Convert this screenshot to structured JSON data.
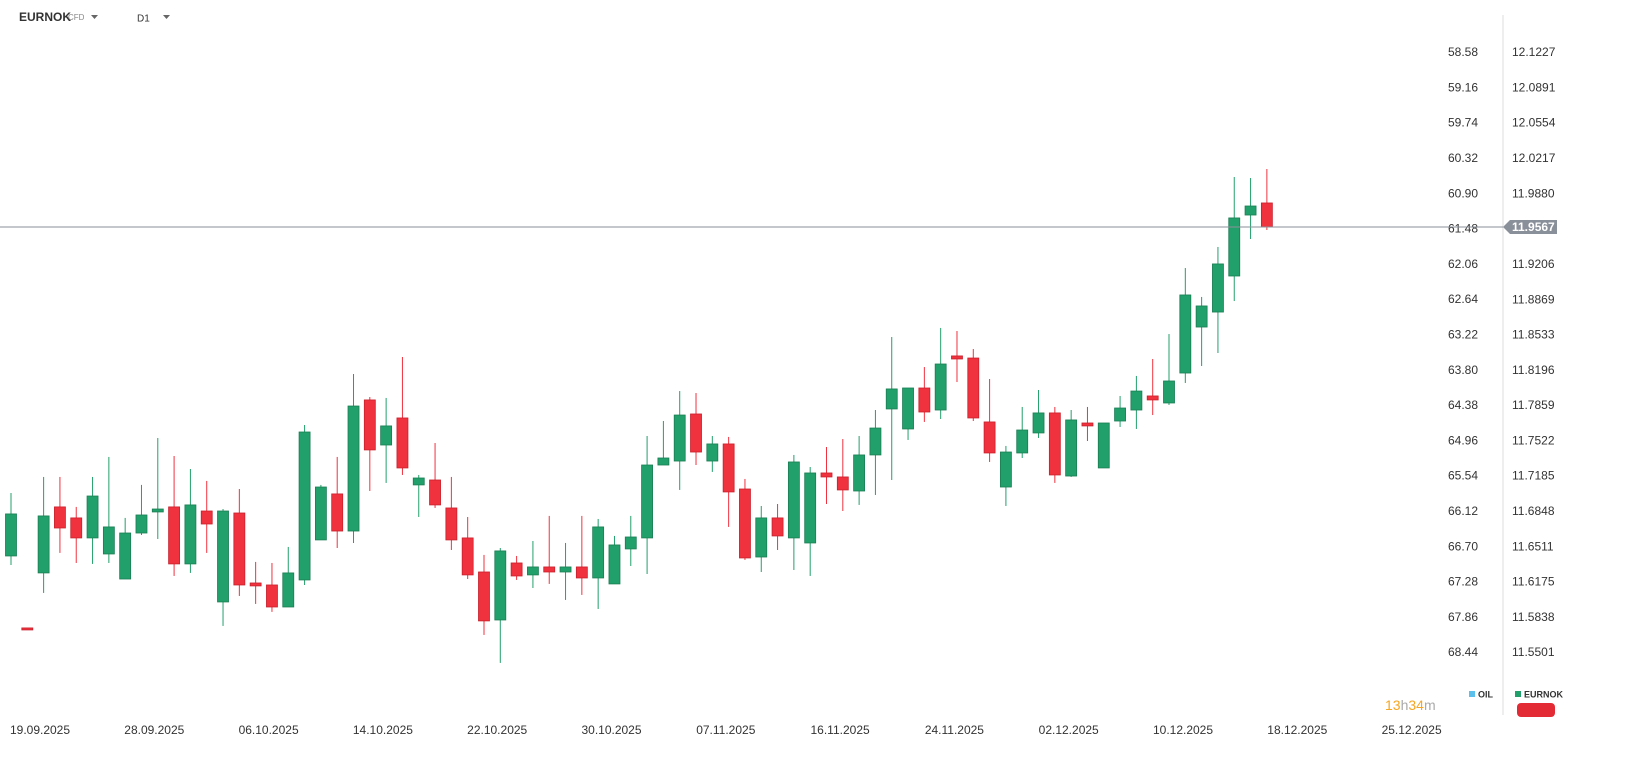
{
  "chart_data": {
    "type": "candlestick",
    "title": "EURNOK",
    "badge": "CFD",
    "timeframe": "D1",
    "up_color": "#22a06b",
    "down_color": "#f0323f",
    "open": [
      11.6427,
      11.574,
      11.6265,
      11.6895,
      11.679,
      11.6599,
      11.6446,
      11.6207,
      11.6646,
      11.6847,
      11.6895,
      11.6351,
      11.6856,
      11.5988,
      11.6837,
      11.6169,
      11.615,
      11.594,
      11.6198,
      11.658,
      11.7019,
      11.6665,
      11.7916,
      11.7486,
      11.7744,
      11.7105,
      11.7152,
      11.6885,
      11.6599,
      11.6274,
      11.5816,
      11.636,
      11.6246,
      11.6322,
      11.6274,
      11.6322,
      11.6217,
      11.616,
      11.6494,
      11.6599,
      11.7295,
      11.7333,
      11.7782,
      11.7333,
      11.7496,
      11.7066,
      11.6417,
      11.679,
      11.6599,
      11.6551,
      11.7219,
      11.7181,
      11.7047,
      11.7391,
      11.783,
      11.7639,
      11.803,
      11.782,
      11.8336,
      11.8316,
      11.7706,
      11.7085,
      11.741,
      11.7601,
      11.7792,
      11.719,
      11.7696,
      11.7267,
      11.7715,
      11.782,
      11.7954,
      11.7887,
      11.8173,
      11.8612,
      11.8755,
      11.9099,
      11.9681,
      11.9796
    ],
    "high": [
      11.7028,
      11.574,
      11.7181,
      11.7181,
      11.6895,
      11.7181,
      11.7372,
      11.679,
      11.7105,
      11.7553,
      11.7381,
      11.7257,
      11.7143,
      11.6875,
      11.7066,
      11.637,
      11.636,
      11.6513,
      11.7677,
      11.7105,
      11.7372,
      11.8164,
      11.7944,
      11.7935,
      11.8326,
      11.72,
      11.7505,
      11.7181,
      11.6799,
      11.6437,
      11.6503,
      11.6427,
      11.657,
      11.6809,
      11.6551,
      11.6809,
      11.678,
      11.6618,
      11.6809,
      11.7572,
      11.7715,
      11.8001,
      11.7982,
      11.7572,
      11.7563,
      11.7162,
      11.6904,
      11.6923,
      11.7391,
      11.7276,
      11.7467,
      11.7543,
      11.7572,
      11.782,
      11.8517,
      11.803,
      11.823,
      11.8603,
      11.8574,
      11.8402,
      11.8116,
      11.7477,
      11.7849,
      11.8011,
      11.7849,
      11.782,
      11.7849,
      11.7696,
      11.7954,
      11.8145,
      11.8307,
      11.8545,
      11.9175,
      11.8899,
      11.9376,
      12.0044,
      12.0034,
      12.012
    ],
    "low": [
      11.6341,
      11.5721,
      11.6074,
      11.6456,
      11.636,
      11.6351,
      11.636,
      11.6207,
      11.6627,
      11.6589,
      11.6236,
      11.6265,
      11.6456,
      11.5759,
      11.6045,
      11.5969,
      11.5893,
      11.594,
      11.615,
      11.658,
      11.6503,
      11.6551,
      11.7047,
      11.7124,
      11.72,
      11.6799,
      11.6885,
      11.6484,
      11.6207,
      11.5673,
      11.5406,
      11.6198,
      11.6121,
      11.616,
      11.6007,
      11.6055,
      11.5921,
      11.616,
      11.6331,
      11.6255,
      11.7295,
      11.7057,
      11.7295,
      11.7229,
      11.6704,
      11.6389,
      11.6274,
      11.6484,
      11.6293,
      11.6236,
      11.6923,
      11.6856,
      11.6914,
      11.7009,
      11.7152,
      11.7534,
      11.7706,
      11.7734,
      11.8087,
      11.7715,
      11.7324,
      11.6904,
      11.7362,
      11.7553,
      11.7124,
      11.7181,
      11.7524,
      11.7267,
      11.7658,
      11.7639,
      11.7772,
      11.7868,
      11.8078,
      11.824,
      11.8364,
      11.886,
      11.9452,
      11.9538
    ],
    "close": [
      11.6828,
      11.5721,
      11.6809,
      11.6694,
      11.6599,
      11.6999,
      11.6704,
      11.6646,
      11.6818,
      11.6875,
      11.6351,
      11.6914,
      11.6732,
      11.6856,
      11.615,
      11.6141,
      11.594,
      11.6265,
      11.761,
      11.7085,
      11.6665,
      11.7858,
      11.7439,
      11.7668,
      11.7267,
      11.7171,
      11.6914,
      11.658,
      11.6246,
      11.5807,
      11.6475,
      11.6236,
      11.6322,
      11.6274,
      11.6322,
      11.6217,
      11.6704,
      11.6532,
      11.6608,
      11.7295,
      11.7362,
      11.7772,
      11.7419,
      11.7496,
      11.7038,
      11.6408,
      11.679,
      11.6618,
      11.7324,
      11.7219,
      11.7181,
      11.7057,
      11.7391,
      11.7648,
      11.8021,
      11.803,
      11.7801,
      11.8259,
      11.8307,
      11.7744,
      11.741,
      11.7419,
      11.7629,
      11.7792,
      11.72,
      11.7725,
      11.7668,
      11.7696,
      11.7839,
      11.8001,
      11.7916,
      11.8097,
      11.8918,
      11.8813,
      11.9214,
      11.9653,
      11.9767,
      11.9567
    ],
    "last_price": 11.9567,
    "ylim": [
      11.4909,
      12.159
    ],
    "yticks": [
      12.1227,
      12.0891,
      12.0554,
      12.0217,
      {
        "value": 11.988,
        "label": "11.9880"
      },
      11.9206,
      11.8869,
      11.8533,
      11.8196,
      11.7859,
      11.7522,
      11.7185,
      11.6848,
      11.6511,
      11.6175,
      11.5838,
      11.5501
    ],
    "y2lim": [
      69.459,
      57.956
    ],
    "y2ticks": [
      58.58,
      59.16,
      59.74,
      60.32,
      {
        "value": 60.9,
        "label": "60.90"
      },
      61.48,
      62.06,
      62.64,
      63.22,
      {
        "value": 63.8,
        "label": "63.80"
      },
      64.38,
      64.96,
      65.54,
      66.12,
      {
        "value": 66.7,
        "label": "66.70"
      },
      67.28,
      67.86,
      68.44
    ],
    "x_labels": [
      "19.09.2025",
      "28.09.2025",
      "06.10.2025",
      "14.10.2025",
      "22.10.2025",
      "30.10.2025",
      "07.11.2025",
      "16.11.2025",
      "24.11.2025",
      "02.12.2025",
      "10.12.2025",
      "18.12.2025",
      "25.12.2025"
    ],
    "legend": [
      {
        "name": "OIL",
        "color": "#5bc0eb"
      },
      {
        "name": "EURNOK",
        "color": "#22a06b"
      }
    ],
    "countdown": [
      "13",
      "h",
      "34",
      "m"
    ]
  }
}
